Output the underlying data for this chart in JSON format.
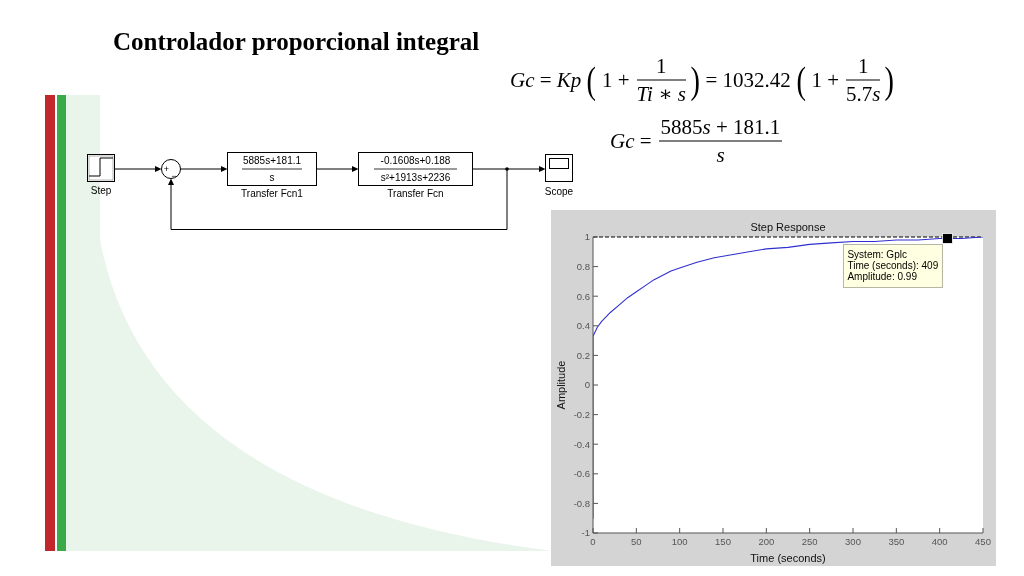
{
  "chart_data": [
    {
      "type": "other",
      "title": "Controlador proporcional integral",
      "annotations": [
        "Gc = Kp",
        "(",
        "1 +",
        "1",
        "Ti ∗ s",
        ")",
        "= 1032.42",
        "(",
        "1 +",
        "1",
        "5.7s",
        ")",
        "Gc =",
        "5885s + 181.1",
        "s",
        "Step",
        "+",
        "−",
        "5885s+181.1",
        "s",
        "Transfer Fcn1",
        "-0.1608s+0.188",
        "s²+1913s+2236",
        "Transfer Fcn",
        "Scope"
      ]
    },
    {
      "type": "line",
      "title": "Step Response",
      "xlabel": "Time (seconds)",
      "ylabel": "Amplitude",
      "x": [
        0,
        0,
        0,
        5,
        10,
        20,
        30,
        40,
        50,
        60,
        70,
        80,
        90,
        100,
        120,
        140,
        160,
        180,
        200,
        225,
        250,
        275,
        300,
        325,
        350,
        375,
        400,
        425,
        450
      ],
      "series": [
        {
          "color": "#2f2fd0",
          "values": [
            0,
            -0.9,
            0.33,
            0.39,
            0.43,
            0.49,
            0.54,
            0.59,
            0.63,
            0.67,
            0.71,
            0.74,
            0.77,
            0.79,
            0.83,
            0.86,
            0.88,
            0.9,
            0.92,
            0.93,
            0.95,
            0.96,
            0.97,
            0.97,
            0.98,
            0.98,
            0.99,
            0.99,
            1.0
          ]
        }
      ],
      "xlim": [
        0,
        450
      ],
      "xticks": [
        0,
        50,
        100,
        150,
        200,
        250,
        300,
        350,
        400,
        450
      ],
      "ylim": [
        -1,
        1
      ],
      "yticks": [
        -1,
        -0.8,
        -0.6,
        -0.4,
        -0.2,
        0,
        0.2,
        0.4,
        0.6,
        0.8,
        1
      ],
      "ref_lines": [
        {
          "axis": "y",
          "value": 1,
          "color": "#000000",
          "line_style": "dashed"
        }
      ],
      "annotations": [
        {
          "text": "System: Gplc\nTime (seconds): 409\nAmplitude: 0.99",
          "x": 409,
          "y": 0.99
        }
      ],
      "marker": "none",
      "line_style": "solid"
    }
  ]
}
